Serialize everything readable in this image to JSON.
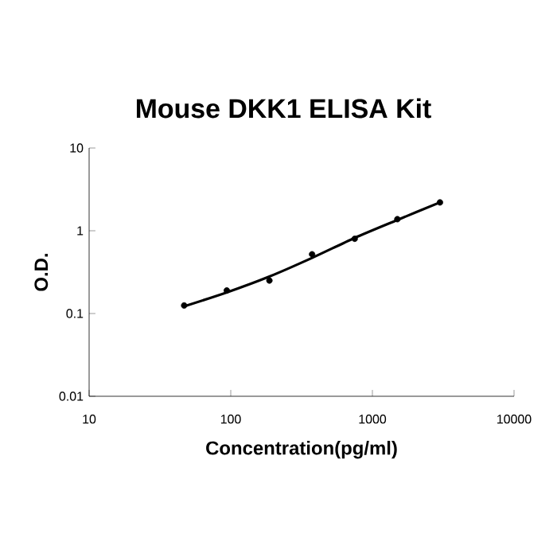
{
  "chart_data": {
    "type": "scatter",
    "title": "Mouse DKK1 ELISA Kit",
    "xlabel": "Concentration(pg/ml)",
    "ylabel": "O.D.",
    "log": "xy",
    "xlim": [
      10,
      10000
    ],
    "ylim": [
      0.01,
      10
    ],
    "xticks": [
      10,
      100,
      1000,
      10000
    ],
    "yticks": [
      0.01,
      0.1,
      1,
      10
    ],
    "grid": false,
    "series": [
      {
        "color": "#000000",
        "marker": "circle",
        "x": [
          46.875,
          93.75,
          187.5,
          375,
          750,
          1500,
          3000
        ],
        "values": [
          0.125,
          0.19,
          0.25,
          0.52,
          0.8,
          1.38,
          2.2
        ]
      },
      {
        "type": "line",
        "color": "#000000",
        "marker": "none",
        "line_style": "solid",
        "x": [
          46.875,
          93.75,
          187.5,
          375,
          750,
          1500,
          3000
        ],
        "values": [
          0.122,
          0.18,
          0.28,
          0.47,
          0.82,
          1.35,
          2.2
        ]
      }
    ]
  }
}
